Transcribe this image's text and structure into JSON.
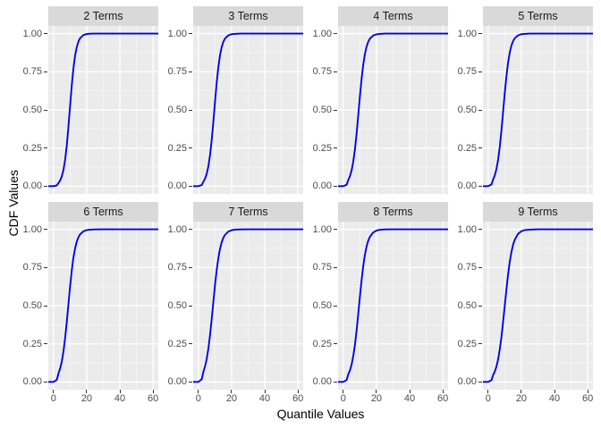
{
  "figure": {
    "y_axis_title": "CDF Values",
    "x_axis_title": "Quantile Values"
  },
  "axes": {
    "x_tick_labels": [
      "0",
      "20",
      "40",
      "60"
    ],
    "x_major_ticks": [
      0,
      20,
      40,
      60
    ],
    "x_minor_ticks": [
      10,
      30,
      50
    ],
    "y_tick_labels": [
      "1.00",
      "0.75",
      "0.50",
      "0.25",
      "0.00"
    ],
    "y_major_ticks": [
      1.0,
      0.75,
      0.5,
      0.25,
      0.0
    ],
    "y_minor_ticks": [
      0.875,
      0.625,
      0.375,
      0.125
    ]
  },
  "colors": {
    "panel_background": "#EBEBEB",
    "strip_background": "#D9D9D9",
    "grid_major": "#FFFFFF",
    "grid_minor": "#FFFFFF",
    "curve": "#0000EE",
    "tick_text": "#4D4D4D",
    "tick_mark": "#333333",
    "title_text": "#000000"
  },
  "chart_data": {
    "type": "line",
    "title": "",
    "xlabel": "Quantile Values",
    "ylabel": "CDF Values",
    "legend": "none",
    "grid": true,
    "panel_layout": {
      "rows": 2,
      "cols": 4
    },
    "x_range": [
      -3.15,
      63.15
    ],
    "y_range": [
      -0.05,
      1.05
    ],
    "x": [
      -3.15,
      0,
      2,
      3,
      4,
      5,
      6,
      7,
      8,
      9,
      10,
      11,
      12,
      13,
      14,
      15,
      16,
      18,
      20,
      22,
      25,
      30,
      40,
      63.15
    ],
    "series": [
      {
        "name": "2 Terms",
        "values": [
          0.001,
          0.001,
          0.006,
          0.022,
          0.038,
          0.065,
          0.108,
          0.174,
          0.269,
          0.392,
          0.528,
          0.662,
          0.772,
          0.856,
          0.911,
          0.947,
          0.969,
          0.99,
          0.997,
          0.999,
          1,
          1,
          1,
          1
        ]
      },
      {
        "name": "3 Terms",
        "values": [
          0.001,
          0.001,
          0.008,
          0.03,
          0.05,
          0.082,
          0.131,
          0.203,
          0.301,
          0.421,
          0.552,
          0.677,
          0.779,
          0.857,
          0.91,
          0.945,
          0.967,
          0.988,
          0.996,
          0.998,
          1,
          1,
          1,
          1
        ]
      },
      {
        "name": "4 Terms",
        "values": [
          0.001,
          0.001,
          0.01,
          0.041,
          0.066,
          0.104,
          0.161,
          0.24,
          0.343,
          0.463,
          0.587,
          0.7,
          0.794,
          0.864,
          0.913,
          0.945,
          0.966,
          0.987,
          0.995,
          0.998,
          1,
          1,
          1,
          1
        ]
      },
      {
        "name": "5 Terms",
        "values": [
          0.001,
          0.001,
          0.012,
          0.045,
          0.072,
          0.114,
          0.175,
          0.259,
          0.366,
          0.488,
          0.611,
          0.721,
          0.81,
          0.875,
          0.921,
          0.95,
          0.969,
          0.988,
          0.996,
          0.998,
          1,
          1,
          1,
          1
        ]
      },
      {
        "name": "6 Terms",
        "values": [
          0.001,
          0.001,
          0.015,
          0.057,
          0.089,
          0.135,
          0.201,
          0.289,
          0.394,
          0.512,
          0.627,
          0.731,
          0.815,
          0.875,
          0.919,
          0.948,
          0.967,
          0.987,
          0.995,
          0.998,
          0.999,
          1,
          1,
          1
        ]
      },
      {
        "name": "7 Terms",
        "values": [
          0.001,
          0.001,
          0.018,
          0.067,
          0.102,
          0.151,
          0.219,
          0.306,
          0.411,
          0.523,
          0.634,
          0.731,
          0.81,
          0.871,
          0.914,
          0.944,
          0.963,
          0.985,
          0.994,
          0.998,
          0.999,
          1,
          1,
          1
        ]
      },
      {
        "name": "8 Terms",
        "values": [
          0.001,
          0.001,
          0.013,
          0.05,
          0.076,
          0.114,
          0.169,
          0.242,
          0.336,
          0.443,
          0.557,
          0.664,
          0.758,
          0.831,
          0.886,
          0.924,
          0.95,
          0.979,
          0.992,
          0.997,
          0.999,
          1,
          1,
          1
        ]
      },
      {
        "name": "9 Terms",
        "values": [
          0.001,
          0.001,
          0.012,
          0.046,
          0.069,
          0.102,
          0.149,
          0.214,
          0.295,
          0.394,
          0.5,
          0.606,
          0.705,
          0.786,
          0.851,
          0.898,
          0.931,
          0.97,
          0.987,
          0.995,
          0.998,
          1,
          1,
          1
        ]
      }
    ]
  }
}
